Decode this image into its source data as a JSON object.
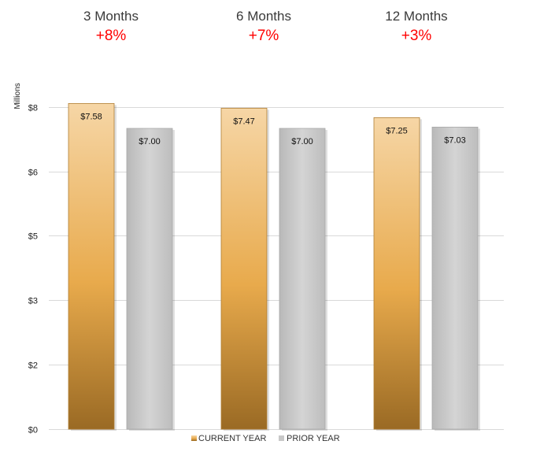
{
  "chart_data": {
    "type": "bar",
    "ylabel": "Millions",
    "ylim": [
      0,
      8.1
    ],
    "categories": [
      "3 Months",
      "6 Months",
      "12 Months"
    ],
    "changes": [
      "+8%",
      "+7%",
      "+3%"
    ],
    "series": [
      {
        "name": "CURRENT YEAR",
        "values": [
          7.58,
          7.47,
          7.25
        ],
        "labels": [
          "$7.58",
          "$7.47",
          "$7.25"
        ],
        "color": "#d99a3c"
      },
      {
        "name": "PRIOR YEAR",
        "values": [
          7.0,
          7.0,
          7.03
        ],
        "labels": [
          "$7.00",
          "$7.00",
          "$7.03"
        ],
        "color": "#c8c8c8"
      }
    ],
    "ticks": [
      {
        "value": 0,
        "label": "$0"
      },
      {
        "value": 1.5,
        "label": "$2"
      },
      {
        "value": 3.0,
        "label": "$3"
      },
      {
        "value": 4.5,
        "label": "$5"
      },
      {
        "value": 6.0,
        "label": "$6"
      },
      {
        "value": 7.5,
        "label": "$8"
      }
    ],
    "grid": true,
    "legend_position": "bottom"
  },
  "colors": {
    "change_text": "#ff0000",
    "current_year_dark": "#9a6a24",
    "current_year_mid": "#e8aa4c",
    "current_year_light": "#f6d6a6",
    "prior_year": "#c8c8c8",
    "gridline": "#d9d9d9"
  }
}
